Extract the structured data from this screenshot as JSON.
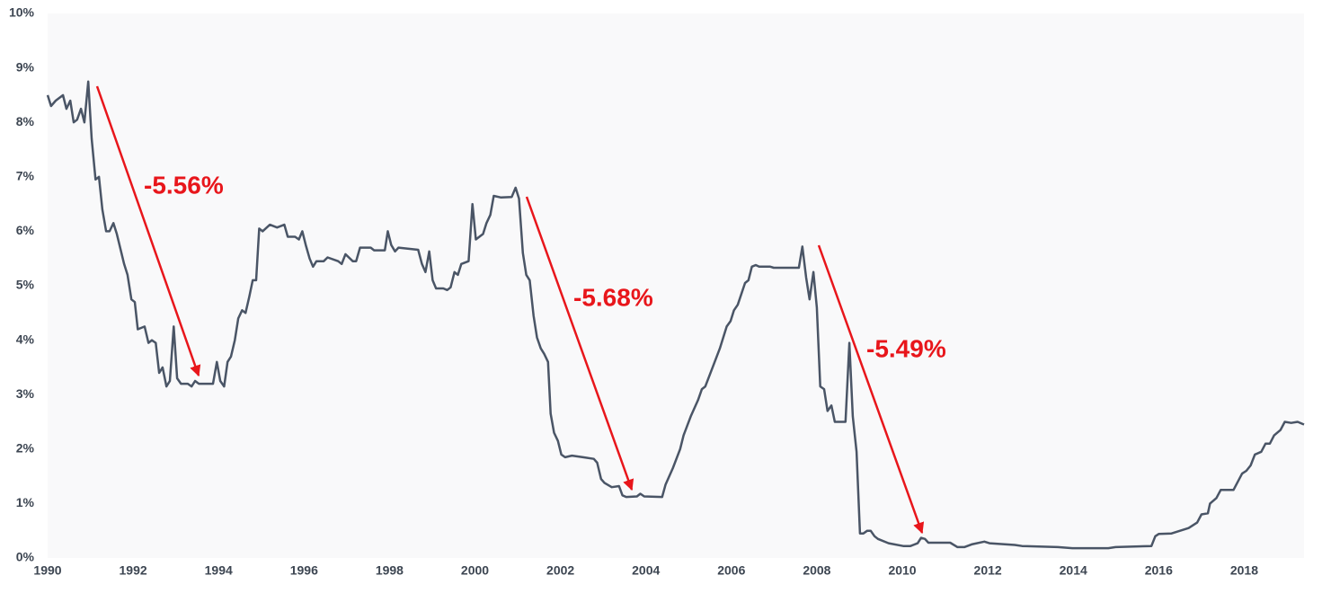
{
  "chart_data": {
    "type": "line",
    "x": [
      1990.0,
      1990.08,
      1990.19,
      1990.36,
      1990.44,
      1990.53,
      1990.61,
      1990.69,
      1990.78,
      1990.86,
      1990.95,
      1991.03,
      1991.12,
      1991.2,
      1991.28,
      1991.37,
      1991.45,
      1991.54,
      1991.62,
      1991.79,
      1991.87,
      1991.96,
      1992.04,
      1992.11,
      1992.27,
      1992.36,
      1992.44,
      1992.53,
      1992.61,
      1992.69,
      1992.78,
      1992.86,
      1992.95,
      1993.03,
      1993.12,
      1993.28,
      1993.37,
      1993.45,
      1993.54,
      1993.87,
      1993.96,
      1994.04,
      1994.13,
      1994.21,
      1994.29,
      1994.38,
      1994.46,
      1994.55,
      1994.63,
      1994.72,
      1994.8,
      1994.88,
      1994.95,
      1995.03,
      1995.2,
      1995.37,
      1995.54,
      1995.62,
      1995.79,
      1995.88,
      1995.96,
      1996.04,
      1996.13,
      1996.21,
      1996.29,
      1996.46,
      1996.55,
      1996.8,
      1996.88,
      1996.97,
      1997.14,
      1997.22,
      1997.31,
      1997.56,
      1997.64,
      1997.89,
      1997.96,
      1998.04,
      1998.13,
      1998.21,
      1998.67,
      1998.76,
      1998.84,
      1998.93,
      1999.01,
      1999.09,
      1999.26,
      1999.35,
      1999.43,
      1999.52,
      1999.6,
      1999.68,
      1999.85,
      1999.94,
      2000.02,
      2000.19,
      2000.27,
      2000.36,
      2000.44,
      2000.61,
      2000.86,
      2000.95,
      2001.03,
      2001.12,
      2001.2,
      2001.28,
      2001.37,
      2001.45,
      2001.54,
      2001.62,
      2001.71,
      2001.77,
      2001.85,
      2001.94,
      2002.02,
      2002.11,
      2002.27,
      2002.53,
      2002.78,
      2002.86,
      2002.95,
      2003.03,
      2003.2,
      2003.37,
      2003.45,
      2003.54,
      2003.79,
      2003.87,
      2003.96,
      2004.38,
      2004.46,
      2004.63,
      2004.8,
      2004.88,
      2005.05,
      2005.22,
      2005.31,
      2005.39,
      2005.56,
      2005.73,
      2005.89,
      2005.98,
      2006.06,
      2006.15,
      2006.32,
      2006.4,
      2006.48,
      2006.57,
      2006.65,
      2006.91,
      2006.99,
      2007.58,
      2007.66,
      2007.75,
      2007.83,
      2007.92,
      2008.0,
      2008.08,
      2008.17,
      2008.25,
      2008.34,
      2008.42,
      2008.67,
      2008.76,
      2008.84,
      2008.93,
      2009.01,
      2009.09,
      2009.18,
      2009.26,
      2009.35,
      2009.43,
      2009.68,
      2010.02,
      2010.19,
      2010.36,
      2010.44,
      2010.53,
      2010.61,
      2011.12,
      2011.29,
      2011.45,
      2011.62,
      2011.92,
      2012.04,
      2012.63,
      2012.8,
      2013.64,
      2013.98,
      2014.82,
      2014.99,
      2015.83,
      2015.92,
      2016.0,
      2016.3,
      2016.5,
      2016.7,
      2016.9,
      2017.0,
      2017.15,
      2017.2,
      2017.35,
      2017.45,
      2017.75,
      2017.85,
      2017.95,
      2018.05,
      2018.15,
      2018.25,
      2018.4,
      2018.5,
      2018.6,
      2018.7,
      2018.85,
      2018.95,
      2019.1,
      2019.25,
      2019.4
    ],
    "series": [
      {
        "color": "#4a5566",
        "values": [
          8.5,
          8.3,
          8.4,
          8.5,
          8.25,
          8.4,
          8.0,
          8.05,
          8.25,
          8.0,
          8.75,
          7.7,
          6.95,
          7.0,
          6.4,
          6.0,
          6.0,
          6.15,
          5.95,
          5.4,
          5.2,
          4.75,
          4.7,
          4.2,
          4.25,
          3.95,
          4.0,
          3.95,
          3.4,
          3.5,
          3.15,
          3.25,
          4.25,
          3.3,
          3.2,
          3.2,
          3.15,
          3.25,
          3.2,
          3.2,
          3.6,
          3.25,
          3.15,
          3.6,
          3.7,
          4.0,
          4.4,
          4.55,
          4.5,
          4.8,
          5.1,
          5.1,
          6.05,
          6.0,
          6.12,
          6.07,
          6.12,
          5.9,
          5.9,
          5.85,
          6.0,
          5.75,
          5.5,
          5.35,
          5.45,
          5.45,
          5.52,
          5.45,
          5.4,
          5.58,
          5.45,
          5.45,
          5.7,
          5.7,
          5.65,
          5.65,
          6.0,
          5.75,
          5.63,
          5.7,
          5.66,
          5.4,
          5.25,
          5.63,
          5.1,
          4.95,
          4.95,
          4.92,
          4.97,
          5.25,
          5.2,
          5.4,
          5.45,
          6.5,
          5.85,
          5.95,
          6.15,
          6.3,
          6.65,
          6.62,
          6.63,
          6.8,
          6.6,
          5.6,
          5.2,
          5.1,
          4.45,
          4.05,
          3.85,
          3.75,
          3.6,
          2.65,
          2.3,
          2.15,
          1.9,
          1.85,
          1.88,
          1.85,
          1.82,
          1.75,
          1.45,
          1.38,
          1.3,
          1.32,
          1.15,
          1.12,
          1.13,
          1.18,
          1.13,
          1.12,
          1.35,
          1.65,
          2.0,
          2.25,
          2.6,
          2.9,
          3.1,
          3.15,
          3.5,
          3.85,
          4.25,
          4.35,
          4.55,
          4.65,
          5.05,
          5.1,
          5.35,
          5.38,
          5.35,
          5.35,
          5.33,
          5.33,
          5.72,
          5.15,
          4.75,
          5.25,
          4.6,
          3.15,
          3.1,
          2.7,
          2.8,
          2.5,
          2.5,
          3.95,
          2.6,
          1.95,
          0.45,
          0.45,
          0.5,
          0.5,
          0.4,
          0.35,
          0.27,
          0.22,
          0.22,
          0.27,
          0.37,
          0.35,
          0.28,
          0.28,
          0.2,
          0.2,
          0.25,
          0.3,
          0.27,
          0.24,
          0.22,
          0.2,
          0.18,
          0.18,
          0.2,
          0.22,
          0.4,
          0.44,
          0.45,
          0.5,
          0.55,
          0.65,
          0.8,
          0.82,
          1.0,
          1.1,
          1.25,
          1.25,
          1.4,
          1.55,
          1.6,
          1.7,
          1.9,
          1.95,
          2.1,
          2.1,
          2.25,
          2.35,
          2.5,
          2.48,
          2.5,
          2.45
        ]
      }
    ],
    "xlim": [
      1990,
      2019.4
    ],
    "xticks": [
      1990,
      1992,
      1994,
      1996,
      1998,
      2000,
      2002,
      2004,
      2006,
      2008,
      2010,
      2012,
      2014,
      2016,
      2018
    ],
    "ylim": [
      0,
      10
    ],
    "yticks": [
      {
        "value": 0,
        "label": "0%"
      },
      {
        "value": 1,
        "label": "1%"
      },
      {
        "value": 2,
        "label": "2%"
      },
      {
        "value": 3,
        "label": "3%"
      },
      {
        "value": 4,
        "label": "4%"
      },
      {
        "value": 5,
        "label": "5%"
      },
      {
        "value": 6,
        "label": "6%"
      },
      {
        "value": 7,
        "label": "7%"
      },
      {
        "value": 8,
        "label": "8%"
      },
      {
        "value": 9,
        "label": "9%"
      },
      {
        "value": 10,
        "label": "10%"
      }
    ],
    "grid": false,
    "annotations": [
      "-5.56%",
      "-5.68%",
      "-5.49%"
    ],
    "annotation_color": "#e8161b"
  }
}
